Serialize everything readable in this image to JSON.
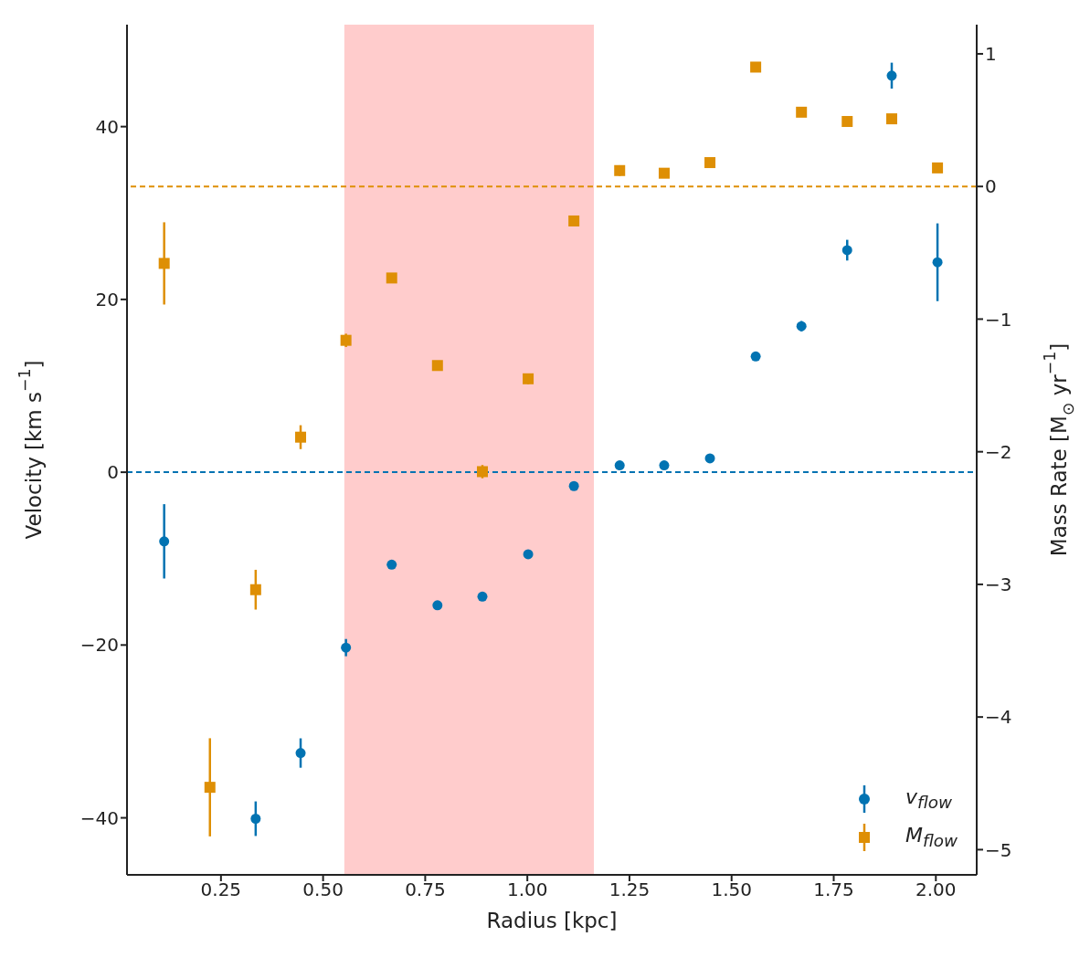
{
  "chart_data": {
    "type": "scatter",
    "xlabel": "Radius [kpc]",
    "ylabel": "Velocity [km s$^{−1}$]",
    "y2label": "Mass Rate [M$_{⊙}$ yr$^{−1}$]",
    "x": [
      0.111,
      0.223,
      0.335,
      0.445,
      0.556,
      0.668,
      0.78,
      0.89,
      1.002,
      1.114,
      1.226,
      1.335,
      1.447,
      1.559,
      1.671,
      1.783,
      1.892,
      2.004
    ],
    "series": [
      {
        "name": "v$_{flow}$",
        "color": "#0173b2",
        "marker": "circle",
        "values": [
          -8.0,
          null,
          -40.1,
          -32.5,
          -20.3,
          -10.7,
          -15.4,
          -14.4,
          -9.5,
          -1.6,
          0.8,
          0.8,
          1.6,
          13.4,
          16.9,
          25.7,
          45.9,
          24.3
        ],
        "errors": [
          4.3,
          null,
          2.0,
          1.7,
          1.0,
          null,
          null,
          null,
          null,
          null,
          null,
          null,
          null,
          null,
          0.6,
          1.2,
          1.5,
          4.5
        ]
      },
      {
        "name": "M$_{flow}$",
        "color": "#de8f05",
        "marker": "square",
        "axis": "y2",
        "values": [
          -0.58,
          -4.53,
          -3.04,
          -1.89,
          -1.16,
          -0.69,
          -1.35,
          -2.15,
          -1.45,
          -0.26,
          0.12,
          0.1,
          0.18,
          0.9,
          0.56,
          0.49,
          0.51,
          0.14
        ],
        "errors": [
          0.31,
          0.37,
          0.15,
          0.09,
          0.05,
          null,
          null,
          0.05,
          0.04,
          null,
          0.04,
          null,
          null,
          null,
          null,
          null,
          null,
          null
        ]
      }
    ],
    "xlim": [
      0.02,
      2.1
    ],
    "xticks": [
      {
        "value": 0.25,
        "label": "0.25"
      },
      {
        "value": 0.5,
        "label": "0.50"
      },
      {
        "value": 0.75,
        "label": "0.75"
      },
      {
        "value": 1.0,
        "label": "1.00"
      },
      {
        "value": 1.25,
        "label": "1.25"
      },
      {
        "value": 1.5,
        "label": "1.50"
      },
      {
        "value": 1.75,
        "label": "1.75"
      },
      {
        "value": 2.0,
        "label": "2.00"
      }
    ],
    "ylim": [
      -46.6,
      51.8
    ],
    "yticks": [
      -40,
      -20,
      0,
      20,
      40
    ],
    "y2lim": [
      -5.19,
      1.22
    ],
    "y2ticks": [
      -5,
      -4,
      -3,
      -2,
      -1,
      0,
      1
    ],
    "ref_lines": [
      {
        "axis": "y",
        "value": 0,
        "color": "#0173b2",
        "line_style": "dashed"
      },
      {
        "axis": "y2",
        "value": 0,
        "color": "#de8f05",
        "line_style": "dashed"
      }
    ],
    "bands": [
      {
        "axis": "x",
        "from": 0.552,
        "to": 1.163,
        "color": "#ffcccc"
      }
    ],
    "legend": "bottom right",
    "grid": false
  }
}
